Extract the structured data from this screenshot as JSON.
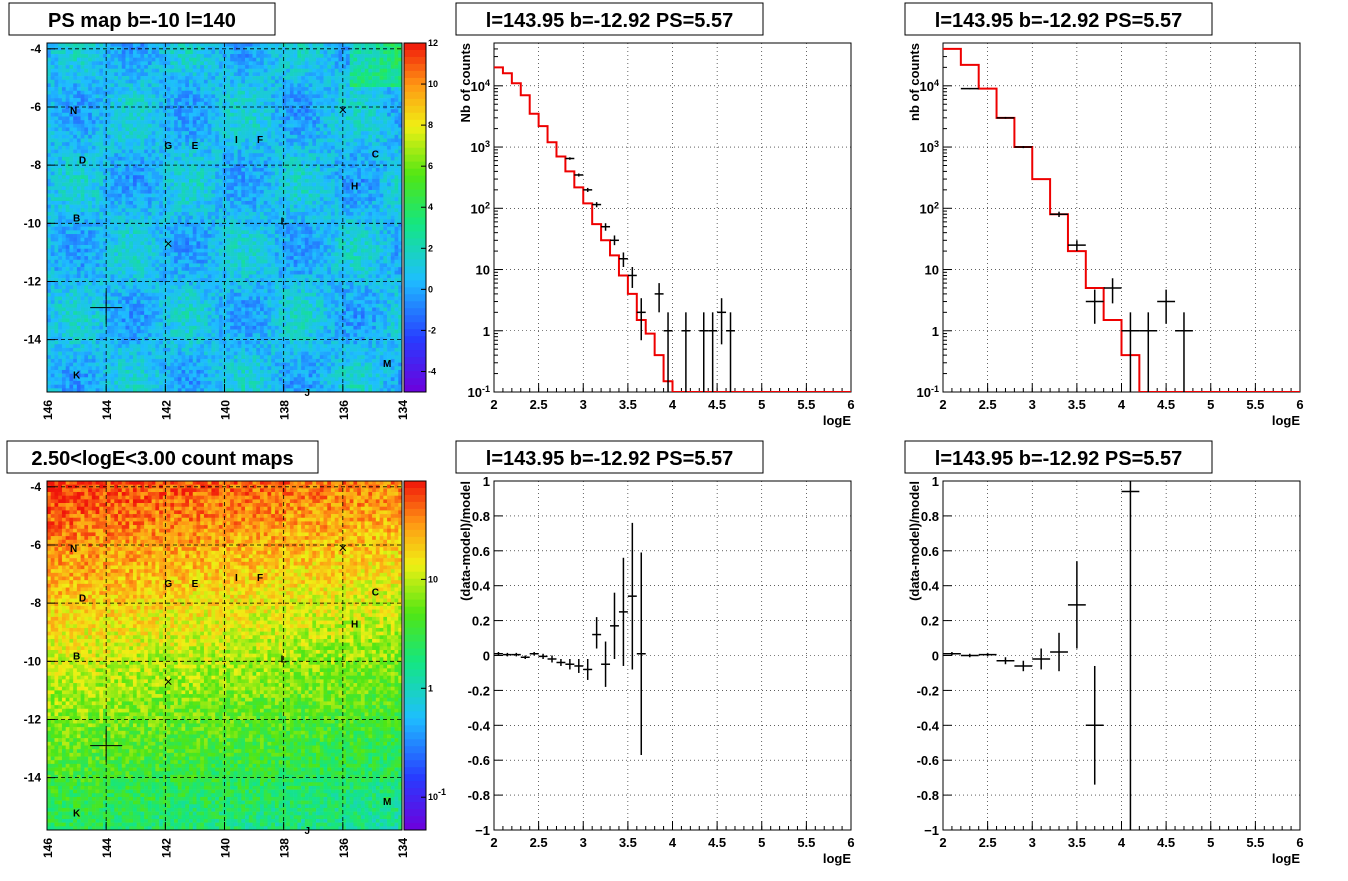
{
  "maps": [
    {
      "title": "PS map b=-10 l=140",
      "scale": "linear",
      "palette": "ps",
      "x_range": [
        146,
        134
      ],
      "y_range": [
        -15.8,
        -3.8
      ],
      "x_ticks": [
        "146",
        "144",
        "142",
        "140",
        "138",
        "136",
        "134"
      ],
      "y_ticks": [
        "-4",
        "-6",
        "-8",
        "-10",
        "-12",
        "-14"
      ],
      "z_ticks": [
        "12",
        "10",
        "8",
        "6",
        "4",
        "2",
        "0",
        "-2",
        "-4"
      ],
      "z_range": [
        -5,
        12
      ]
    },
    {
      "title": "2.50<logE<3.00 count maps",
      "scale": "log",
      "palette": "counts",
      "x_range": [
        146,
        134
      ],
      "y_range": [
        -15.8,
        -3.8
      ],
      "x_ticks": [
        "146",
        "144",
        "142",
        "140",
        "138",
        "136",
        "134"
      ],
      "y_ticks": [
        "-4",
        "-6",
        "-8",
        "-10",
        "-12",
        "-14"
      ],
      "z_ticks": [
        "10",
        "1",
        "10^-1"
      ],
      "z_range": [
        0.05,
        80
      ]
    }
  ],
  "source_labels": [
    {
      "label": "N",
      "l": 145.1,
      "b": -6.1
    },
    {
      "label": "D",
      "l": 144.8,
      "b": -7.8
    },
    {
      "label": "B",
      "l": 145.0,
      "b": -9.8
    },
    {
      "label": "K",
      "l": 145.0,
      "b": -15.2
    },
    {
      "label": "G",
      "l": 141.9,
      "b": -7.3
    },
    {
      "label": "E",
      "l": 141.0,
      "b": -7.3
    },
    {
      "label": "I",
      "l": 139.6,
      "b": -7.1
    },
    {
      "label": "F",
      "l": 138.8,
      "b": -7.1
    },
    {
      "label": "L",
      "l": 138.0,
      "b": -9.9
    },
    {
      "label": "H",
      "l": 135.6,
      "b": -8.7
    },
    {
      "label": "C",
      "l": 134.9,
      "b": -7.6
    },
    {
      "label": "M",
      "l": 134.5,
      "b": -14.8
    },
    {
      "label": "J",
      "l": 137.2,
      "b": -15.8
    }
  ],
  "source_marks": [
    {
      "l": 144.0,
      "b": -12.9,
      "size": "large"
    },
    {
      "l": 141.9,
      "b": -10.7,
      "size": "small"
    },
    {
      "l": 136.0,
      "b": -6.1,
      "size": "small"
    }
  ],
  "chart_data": [
    {
      "type": "histogram",
      "title": "l=143.95 b=-12.92 PS=5.57",
      "xlabel": "logE",
      "ylabel": "Nb of counts",
      "yscale": "log",
      "xlim": [
        2,
        6
      ],
      "ylim": [
        0.1,
        50000
      ],
      "x_ticks": [
        "2",
        "2.5",
        "3",
        "3.5",
        "4",
        "4.5",
        "5",
        "5.5",
        "6"
      ],
      "y_ticks": [
        {
          "v": 10000,
          "label": "10^4"
        },
        {
          "v": 1000,
          "label": "10^3"
        },
        {
          "v": 100,
          "label": "10^2"
        },
        {
          "v": 10,
          "label": "10"
        },
        {
          "v": 1,
          "label": "1"
        },
        {
          "v": 0.1,
          "label": "10^-1"
        }
      ],
      "bin_width": 0.1,
      "model": {
        "edges": [
          2.0,
          2.1,
          2.2,
          2.3,
          2.4,
          2.5,
          2.6,
          2.7,
          2.8,
          2.9,
          3.0,
          3.1,
          3.2,
          3.3,
          3.4,
          3.5,
          3.6,
          3.7,
          3.8,
          3.9,
          4.0,
          4.1,
          4.2,
          6.0
        ],
        "values": [
          20000,
          16000,
          11000,
          7000,
          3500,
          2200,
          1200,
          700,
          400,
          220,
          120,
          55,
          30,
          17,
          8,
          4,
          1.5,
          0.9,
          0.4,
          0.15,
          0.1,
          0.1,
          0.1
        ]
      },
      "points": [
        {
          "x": 2.85,
          "y": 650,
          "lo": 620,
          "hi": 680
        },
        {
          "x": 2.95,
          "y": 350,
          "lo": 330,
          "hi": 370
        },
        {
          "x": 3.05,
          "y": 200,
          "lo": 185,
          "hi": 215
        },
        {
          "x": 3.15,
          "y": 115,
          "lo": 104,
          "hi": 126
        },
        {
          "x": 3.25,
          "y": 50,
          "lo": 43,
          "hi": 57
        },
        {
          "x": 3.35,
          "y": 30,
          "lo": 25,
          "hi": 36
        },
        {
          "x": 3.45,
          "y": 15,
          "lo": 11,
          "hi": 19
        },
        {
          "x": 3.55,
          "y": 8,
          "lo": 5,
          "hi": 11
        },
        {
          "x": 3.65,
          "y": 2,
          "lo": 0.7,
          "hi": 3.4
        },
        {
          "x": 3.85,
          "y": 4,
          "lo": 2,
          "hi": 6
        },
        {
          "x": 3.95,
          "y": 1,
          "lo": 0.1,
          "hi": 2
        },
        {
          "x": 4.15,
          "y": 1,
          "lo": 0.1,
          "hi": 2
        },
        {
          "x": 4.35,
          "y": 1,
          "lo": 0.1,
          "hi": 2
        },
        {
          "x": 4.45,
          "y": 1,
          "lo": 0.1,
          "hi": 2
        },
        {
          "x": 4.55,
          "y": 2,
          "lo": 0.6,
          "hi": 3.4
        },
        {
          "x": 4.65,
          "y": 1,
          "lo": 0.1,
          "hi": 2
        }
      ]
    },
    {
      "type": "histogram",
      "title": "l=143.95 b=-12.92 PS=5.57",
      "xlabel": "logE",
      "ylabel": "nb of counts",
      "yscale": "log",
      "xlim": [
        2,
        6
      ],
      "ylim": [
        0.1,
        50000
      ],
      "x_ticks": [
        "2",
        "2.5",
        "3",
        "3.5",
        "4",
        "4.5",
        "5",
        "5.5",
        "6"
      ],
      "y_ticks": [
        {
          "v": 10000,
          "label": "10^4"
        },
        {
          "v": 1000,
          "label": "10^3"
        },
        {
          "v": 100,
          "label": "10^2"
        },
        {
          "v": 10,
          "label": "10"
        },
        {
          "v": 1,
          "label": "1"
        },
        {
          "v": 0.1,
          "label": "10^-1"
        }
      ],
      "bin_width": 0.2,
      "model": {
        "edges": [
          2.0,
          2.2,
          2.4,
          2.6,
          2.8,
          3.0,
          3.2,
          3.4,
          3.6,
          3.8,
          4.0,
          4.2,
          4.4,
          6.0
        ],
        "values": [
          40000,
          22000,
          9000,
          3000,
          1000,
          300,
          80,
          20,
          5,
          1.5,
          0.4,
          0.1,
          0.1
        ]
      },
      "points": [
        {
          "x": 2.3,
          "y": 9000,
          "lo": 8800,
          "hi": 9200
        },
        {
          "x": 2.7,
          "y": 3000,
          "lo": 2900,
          "hi": 3100
        },
        {
          "x": 2.9,
          "y": 1000,
          "lo": 960,
          "hi": 1040
        },
        {
          "x": 3.3,
          "y": 80,
          "lo": 72,
          "hi": 88
        },
        {
          "x": 3.5,
          "y": 25,
          "lo": 20,
          "hi": 30
        },
        {
          "x": 3.7,
          "y": 3,
          "lo": 1.3,
          "hi": 4.7
        },
        {
          "x": 3.9,
          "y": 5,
          "lo": 2.8,
          "hi": 7.2
        },
        {
          "x": 4.1,
          "y": 1,
          "lo": 0.1,
          "hi": 2
        },
        {
          "x": 4.3,
          "y": 1,
          "lo": 0.1,
          "hi": 2
        },
        {
          "x": 4.5,
          "y": 3,
          "lo": 1.3,
          "hi": 4.7
        },
        {
          "x": 4.7,
          "y": 1,
          "lo": 0.1,
          "hi": 2
        }
      ]
    },
    {
      "type": "scatter",
      "title": "l=143.95 b=-12.92 PS=5.57",
      "xlabel": "logE",
      "ylabel": "(data-model)/model",
      "yscale": "linear",
      "xlim": [
        2,
        6
      ],
      "ylim": [
        -1,
        1
      ],
      "x_ticks": [
        "2",
        "2.5",
        "3",
        "3.5",
        "4",
        "4.5",
        "5",
        "5.5",
        "6"
      ],
      "y_ticks": [
        {
          "v": 1,
          "label": "1"
        },
        {
          "v": 0.8,
          "label": "0.8"
        },
        {
          "v": 0.6,
          "label": "0.6"
        },
        {
          "v": 0.4,
          "label": "0.4"
        },
        {
          "v": 0.2,
          "label": "0.2"
        },
        {
          "v": 0,
          "label": "0"
        },
        {
          "v": -0.2,
          "label": "-0.2"
        },
        {
          "v": -0.4,
          "label": "-0.4"
        },
        {
          "v": -0.6,
          "label": "-0.6"
        },
        {
          "v": -0.8,
          "label": "-0.8"
        },
        {
          "v": -1,
          "label": "−1"
        }
      ],
      "bin_width": 0.1,
      "points": [
        {
          "x": 2.05,
          "y": 0.01,
          "lo": 0.0,
          "hi": 0.02
        },
        {
          "x": 2.15,
          "y": 0.005,
          "lo": -0.005,
          "hi": 0.015
        },
        {
          "x": 2.25,
          "y": 0.005,
          "lo": -0.005,
          "hi": 0.015
        },
        {
          "x": 2.35,
          "y": -0.01,
          "lo": -0.02,
          "hi": 0.0
        },
        {
          "x": 2.45,
          "y": 0.01,
          "lo": 0.0,
          "hi": 0.02
        },
        {
          "x": 2.55,
          "y": -0.005,
          "lo": -0.02,
          "hi": 0.01
        },
        {
          "x": 2.65,
          "y": -0.02,
          "lo": -0.04,
          "hi": 0.0
        },
        {
          "x": 2.75,
          "y": -0.04,
          "lo": -0.06,
          "hi": -0.02
        },
        {
          "x": 2.85,
          "y": -0.05,
          "lo": -0.08,
          "hi": -0.02
        },
        {
          "x": 2.95,
          "y": -0.06,
          "lo": -0.1,
          "hi": -0.02
        },
        {
          "x": 3.05,
          "y": -0.08,
          "lo": -0.14,
          "hi": -0.02
        },
        {
          "x": 3.15,
          "y": 0.12,
          "lo": 0.04,
          "hi": 0.22
        },
        {
          "x": 3.25,
          "y": -0.05,
          "lo": -0.18,
          "hi": 0.08
        },
        {
          "x": 3.35,
          "y": 0.17,
          "lo": -0.02,
          "hi": 0.36
        },
        {
          "x": 3.45,
          "y": 0.25,
          "lo": -0.06,
          "hi": 0.56
        },
        {
          "x": 3.55,
          "y": 0.34,
          "lo": -0.08,
          "hi": 0.76
        },
        {
          "x": 3.65,
          "y": 0.01,
          "lo": -0.57,
          "hi": 0.59
        }
      ]
    },
    {
      "type": "scatter",
      "title": "l=143.95 b=-12.92 PS=5.57",
      "xlabel": "logE",
      "ylabel": "(data-model)/model",
      "yscale": "linear",
      "xlim": [
        2,
        6
      ],
      "ylim": [
        -1,
        1
      ],
      "x_ticks": [
        "2",
        "2.5",
        "3",
        "3.5",
        "4",
        "4.5",
        "5",
        "5.5",
        "6"
      ],
      "y_ticks": [
        {
          "v": 1,
          "label": "1"
        },
        {
          "v": 0.8,
          "label": "0.8"
        },
        {
          "v": 0.6,
          "label": "0.6"
        },
        {
          "v": 0.4,
          "label": "0.4"
        },
        {
          "v": 0.2,
          "label": "0.2"
        },
        {
          "v": 0,
          "label": "0"
        },
        {
          "v": -0.2,
          "label": "-0.2"
        },
        {
          "v": -0.4,
          "label": "-0.4"
        },
        {
          "v": -0.6,
          "label": "-0.6"
        },
        {
          "v": -0.8,
          "label": "-0.8"
        },
        {
          "v": -1,
          "label": "−1"
        }
      ],
      "bin_width": 0.2,
      "points": [
        {
          "x": 2.1,
          "y": 0.01,
          "lo": 0.0,
          "hi": 0.02
        },
        {
          "x": 2.3,
          "y": 0.0,
          "lo": -0.01,
          "hi": 0.01
        },
        {
          "x": 2.5,
          "y": 0.005,
          "lo": -0.005,
          "hi": 0.015
        },
        {
          "x": 2.7,
          "y": -0.03,
          "lo": -0.05,
          "hi": -0.01
        },
        {
          "x": 2.9,
          "y": -0.06,
          "lo": -0.09,
          "hi": -0.03
        },
        {
          "x": 3.1,
          "y": -0.02,
          "lo": -0.08,
          "hi": 0.04
        },
        {
          "x": 3.3,
          "y": 0.02,
          "lo": -0.09,
          "hi": 0.13
        },
        {
          "x": 3.5,
          "y": 0.29,
          "lo": 0.04,
          "hi": 0.54
        },
        {
          "x": 3.7,
          "y": -0.4,
          "lo": -0.74,
          "hi": -0.06
        },
        {
          "x": 4.1,
          "y": 0.94,
          "lo": -1,
          "hi": 1
        }
      ]
    }
  ]
}
